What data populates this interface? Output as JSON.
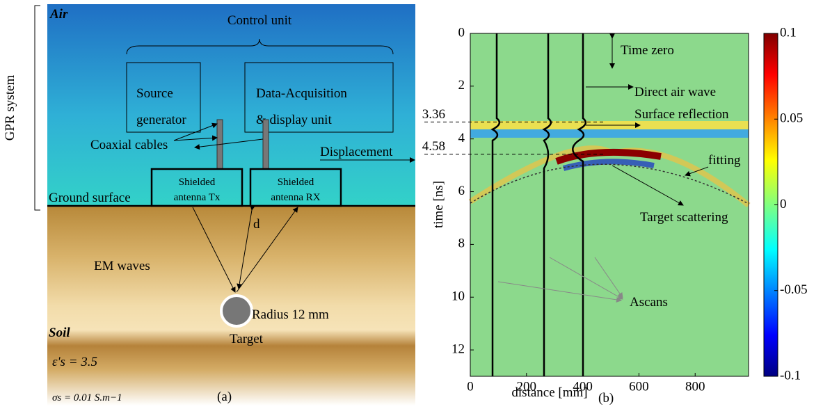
{
  "panel_a": {
    "label": "(a)",
    "system_label": "GPR  system",
    "air": "Air",
    "control_unit": "Control unit",
    "source_box": [
      "Source",
      "generator"
    ],
    "daq_box": [
      "Data-Acquisition",
      "& display unit"
    ],
    "cables": "Coaxial cables",
    "displacement": "Displacement",
    "antenna_tx": [
      "Shielded",
      "antenna Tx"
    ],
    "antenna_rx": [
      "Shielded",
      "antenna RX"
    ],
    "ground": "Ground surface",
    "depth": "d",
    "waves": "EM waves",
    "radius": "Radius 12 mm",
    "soil": "Soil",
    "target": "Target",
    "permittivity": "ε's = 3.5",
    "conductivity": "σs = 0.01 S.m−1"
  },
  "panel_b": {
    "label": "(b)",
    "xlabel": "distance [mm]",
    "ylabel": "time [ns]",
    "xlim": [
      0,
      990
    ],
    "ylim": [
      0,
      13
    ],
    "xticks": [
      0,
      200,
      400,
      600,
      800
    ],
    "yticks": [
      0,
      2,
      4,
      6,
      8,
      10,
      12
    ],
    "reference_lines": [
      3.36,
      4.58
    ],
    "colorbar": {
      "lim": [
        -0.1,
        0.1
      ],
      "ticks": [
        0.1,
        0.05,
        0,
        -0.05,
        -0.1
      ]
    },
    "annotations": [
      "Time zero",
      "Direct air wave",
      "Surface reflection",
      "fitting",
      "Target scattering",
      "Ascans"
    ]
  }
}
